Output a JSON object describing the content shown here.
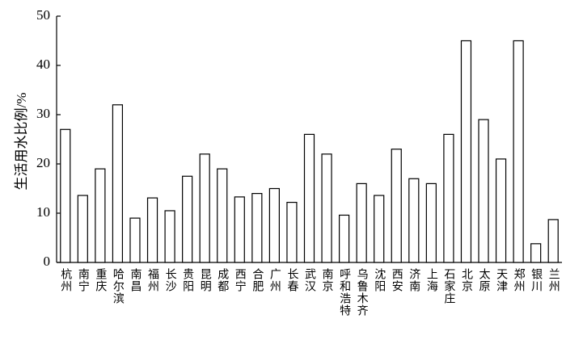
{
  "chart_data": {
    "type": "bar",
    "y_label": "生活用水比例/%",
    "categories": [
      "杭州",
      "南宁",
      "重庆",
      "哈尔滨",
      "南昌",
      "福州",
      "长沙",
      "贵阳",
      "昆明",
      "成都",
      "西宁",
      "合肥",
      "广州",
      "长春",
      "武汉",
      "南京",
      "呼和浩特",
      "乌鲁木齐",
      "沈阳",
      "西安",
      "济南",
      "上海",
      "石家庄",
      "北京",
      "太原",
      "天津",
      "郑州",
      "银川",
      "兰州"
    ],
    "values": [
      27,
      13.6,
      19,
      32,
      9,
      13.1,
      10.5,
      17.5,
      22,
      19,
      13.3,
      14,
      15,
      12.2,
      26,
      22,
      9.6,
      16,
      13.6,
      23,
      17,
      16,
      26,
      45,
      29,
      21,
      45,
      3.8,
      8.7
    ],
    "color": "#ffffff",
    "ylim": [
      0,
      50
    ],
    "yticks": [
      0,
      10,
      20,
      30,
      40,
      50
    ],
    "grid": false
  }
}
